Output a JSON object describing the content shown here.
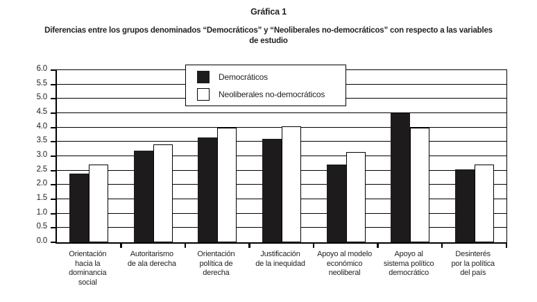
{
  "chart_data": {
    "type": "bar",
    "title": "Gráfica 1",
    "subtitle": "Diferencias entre los grupos denominados “Democráticos” y “Neoliberales no-democráticos” con respecto a las variables de estudio",
    "subtitle_lines": [
      "Diferencias entre los grupos denominados “Democráticos” y “Neoliberales no-democráticos” con respecto a las variables",
      "de estudio"
    ],
    "categories": [
      "Orientación hacia la dominancia social",
      "Autoritarismo de ala derecha",
      "Orientación política de derecha",
      "Justificación de la inequidad",
      "Apoyo al modelo económico neoliberal",
      "Apoyo al sistema político democrático",
      "Desinterés por la política del país"
    ],
    "category_lines": [
      [
        "Orientación",
        "hacia la",
        "dominancia",
        "social"
      ],
      [
        "Autoritarismo",
        "de ala derecha"
      ],
      [
        "Orientación",
        "política de",
        "derecha"
      ],
      [
        "Justificación",
        "de la inequidad"
      ],
      [
        "Apoyo al modelo",
        "económico",
        "neoliberal"
      ],
      [
        "Apoyo al",
        "sistema político",
        "democrático"
      ],
      [
        "Desinterés",
        "por la política",
        "del país"
      ]
    ],
    "series": [
      {
        "name": "Democráticos",
        "color": "#1d1b1c",
        "values": [
          2.4,
          3.2,
          3.65,
          3.6,
          2.7,
          4.5,
          2.55
        ]
      },
      {
        "name": "Neoliberales no-democráticos",
        "color": "#ffffff",
        "values": [
          2.7,
          3.4,
          4.0,
          4.05,
          3.15,
          4.0,
          2.7
        ]
      }
    ],
    "xlabel": "",
    "ylabel": "",
    "ylim": [
      0,
      6.0
    ],
    "ytick_step": 0.5,
    "ytick_labels": [
      "6.0",
      "5.5",
      "5.0",
      "4.5",
      "4.0",
      "3.5",
      "3.0",
      "2.5",
      "2.0",
      "1.5",
      "1.0",
      "0.5",
      "0.0"
    ],
    "grid": "horizontal",
    "legend_position": "inside-top-center",
    "colors": {
      "bar_dark": "#1d1b1c",
      "bar_light": "#ffffff",
      "line": "#000000",
      "text": "#221f20",
      "background": "#ffffff"
    }
  }
}
